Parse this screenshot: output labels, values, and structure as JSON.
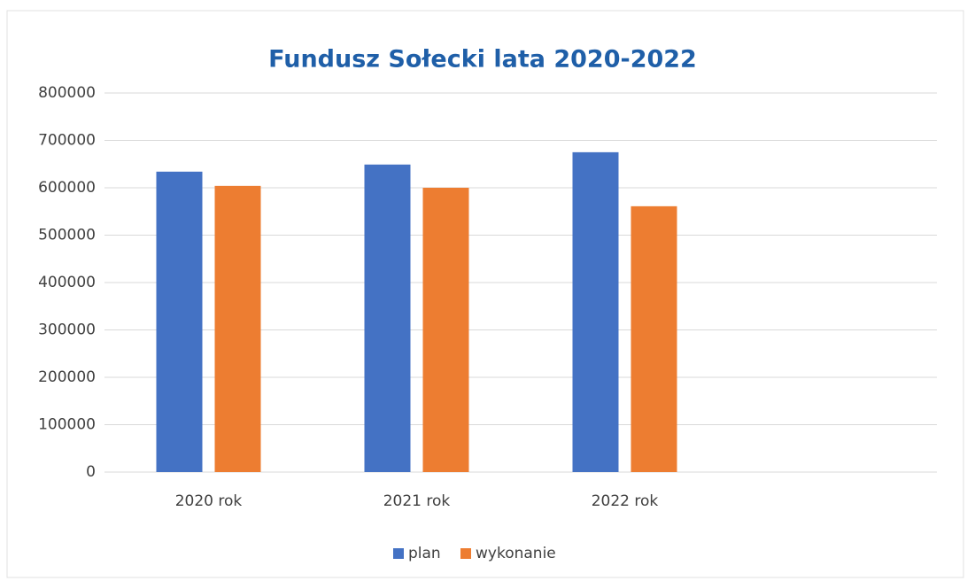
{
  "chart_data": {
    "type": "bar",
    "title": "Fundusz Sołecki lata 2020-2022",
    "categories": [
      "2020 rok",
      "2021 rok",
      "2022 rok",
      null
    ],
    "series": [
      {
        "name": "plan",
        "color": "#4472c4",
        "values": [
          634000,
          649000,
          675000,
          null
        ]
      },
      {
        "name": "wykonanie",
        "color": "#ed7d31",
        "values": [
          604000,
          600000,
          561000,
          null
        ]
      }
    ],
    "ylim": [
      0,
      800000
    ],
    "yticks": [
      0,
      100000,
      200000,
      300000,
      400000,
      500000,
      600000,
      700000,
      800000
    ],
    "grid": true,
    "legend": "bottom"
  }
}
